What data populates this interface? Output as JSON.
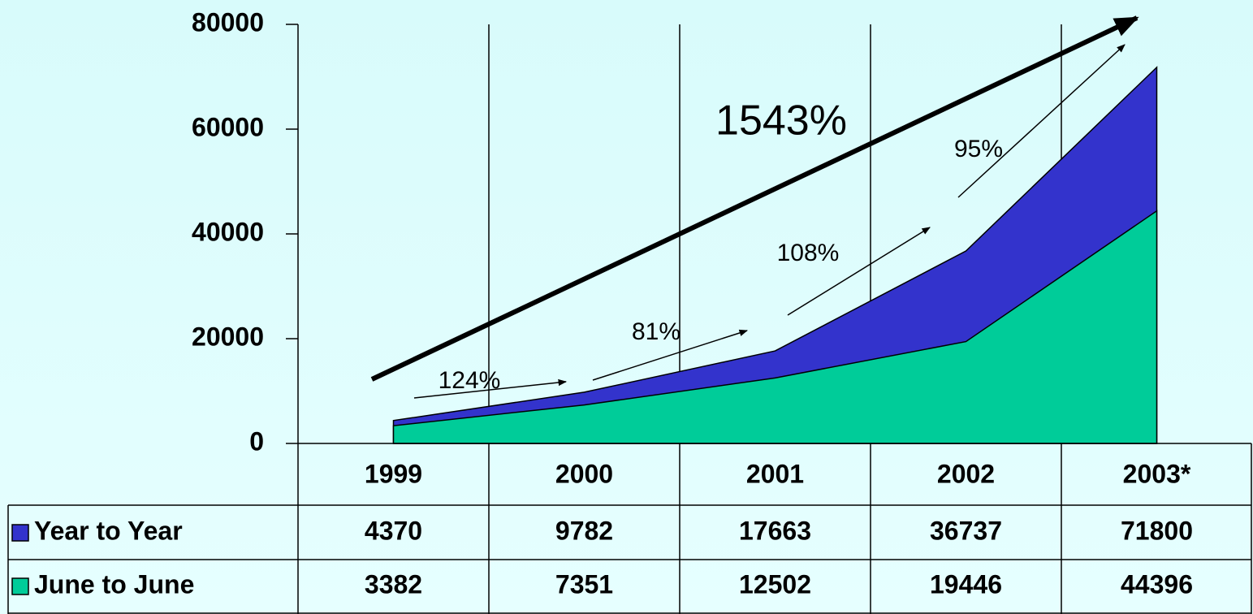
{
  "chart_data": {
    "type": "area",
    "categories": [
      "1999",
      "2000",
      "2001",
      "2002",
      "2003*"
    ],
    "series": [
      {
        "name": "Year to Year",
        "color": "#3333cc",
        "values": [
          4370,
          9782,
          17663,
          36737,
          71800
        ]
      },
      {
        "name": "June to June",
        "color": "#00cc99",
        "values": [
          3382,
          7351,
          12502,
          19446,
          44396
        ]
      }
    ],
    "ylim": [
      0,
      80000
    ],
    "yticks": [
      0,
      20000,
      40000,
      60000,
      80000
    ],
    "annotations": [
      "1543%",
      "124%",
      "81%",
      "108%",
      "95%"
    ]
  }
}
